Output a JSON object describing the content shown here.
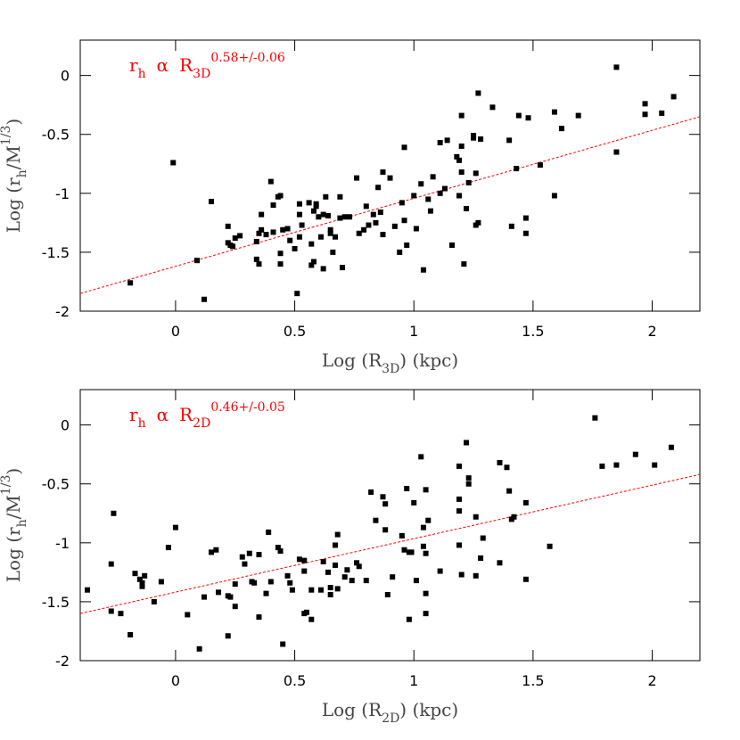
{
  "chart_data": [
    {
      "type": "scatter",
      "annotation": [
        {
          "text": "r"
        },
        {
          "text": "h",
          "role": "sub"
        },
        {
          "text": "α",
          "role": "gap"
        },
        {
          "text": "R",
          "role": "gap"
        },
        {
          "text": "3D",
          "role": "sub"
        },
        {
          "text": "0.58+/-0.06",
          "role": "sup"
        }
      ],
      "annotation_color": "#ff0000",
      "xlabel": [
        {
          "text": "Log (R"
        },
        {
          "text": "3D",
          "role": "sub"
        },
        {
          "text": ") (kpc)"
        }
      ],
      "ylabel": [
        {
          "text": "Log (r"
        },
        {
          "text": "h",
          "role": "sub"
        },
        {
          "text": "/M"
        },
        {
          "text": "1/3",
          "role": "sup"
        },
        {
          "text": ")"
        }
      ],
      "xlim": [
        -0.4,
        2.2
      ],
      "ylim": [
        -2,
        0.3
      ],
      "xticks": [
        0,
        0.5,
        1,
        1.5,
        2
      ],
      "yticks": [
        -2,
        -1.5,
        -1,
        -0.5,
        0
      ],
      "color": "#000000",
      "x": [
        -0.19,
        -0.01,
        0.09,
        0.12,
        0.15,
        0.22,
        0.23,
        0.24,
        0.25,
        0.22,
        0.27,
        0.34,
        0.34,
        0.35,
        0.35,
        0.36,
        0.36,
        0.38,
        0.4,
        0.41,
        0.41,
        0.43,
        0.44,
        0.44,
        0.45,
        0.44,
        0.47,
        0.48,
        0.5,
        0.51,
        0.52,
        0.52,
        0.52,
        0.53,
        0.56,
        0.57,
        0.57,
        0.58,
        0.58,
        0.59,
        0.59,
        0.6,
        0.61,
        0.62,
        0.62,
        0.64,
        0.63,
        0.65,
        0.65,
        0.66,
        0.67,
        0.69,
        0.69,
        0.7,
        0.71,
        0.73,
        0.76,
        0.77,
        0.79,
        0.8,
        0.81,
        0.83,
        0.84,
        0.85,
        0.86,
        0.87,
        0.87,
        0.9,
        0.92,
        0.94,
        0.95,
        0.96,
        0.96,
        0.97,
        1.0,
        1.01,
        1.03,
        1.04,
        1.06,
        1.07,
        1.08,
        1.11,
        1.11,
        1.13,
        1.14,
        1.16,
        1.19,
        1.2,
        1.2,
        1.18,
        1.19,
        1.2,
        1.21,
        1.22,
        1.23,
        1.25,
        1.25,
        1.26,
        1.26,
        1.27,
        1.27,
        1.28,
        1.33,
        1.4,
        1.41,
        1.43,
        1.44,
        1.47,
        1.47,
        1.48,
        1.53,
        1.59,
        1.59,
        1.62,
        1.69,
        1.85,
        1.85,
        1.97,
        1.97,
        2.04,
        2.09
      ],
      "y": [
        -1.76,
        -0.74,
        -1.57,
        -1.9,
        -1.07,
        -1.42,
        -1.44,
        -1.45,
        -1.38,
        -1.28,
        -1.36,
        -1.41,
        -1.56,
        -1.6,
        -1.34,
        -1.31,
        -1.18,
        -1.35,
        -0.9,
        -1.33,
        -1.1,
        -1.03,
        -1.51,
        -1.6,
        -1.31,
        -1.02,
        -1.3,
        -1.4,
        -1.47,
        -1.85,
        -1.37,
        -1.09,
        -1.18,
        -1.27,
        -1.08,
        -1.61,
        -1.43,
        -1.15,
        -1.58,
        -1.09,
        -1.11,
        -1.2,
        -1.37,
        -1.18,
        -1.64,
        -1.19,
        -1.03,
        -1.31,
        -1.34,
        -1.5,
        -1.37,
        -1.03,
        -1.21,
        -1.63,
        -1.2,
        -1.2,
        -0.87,
        -1.34,
        -1.31,
        -1.11,
        -1.27,
        -1.18,
        -1.25,
        -0.95,
        -1.16,
        -0.82,
        -1.35,
        -0.87,
        -1.28,
        -1.5,
        -1.08,
        -0.61,
        -1.23,
        -1.44,
        -1.02,
        -1.3,
        -0.92,
        -1.65,
        -1.05,
        -1.15,
        -0.86,
        -0.57,
        -1.0,
        -0.96,
        -0.55,
        -1.44,
        -1.02,
        -0.34,
        -0.6,
        -0.69,
        -0.72,
        -0.82,
        -1.6,
        -1.13,
        -0.91,
        -0.51,
        -0.53,
        -0.83,
        -1.27,
        -1.25,
        -0.15,
        -0.54,
        -0.27,
        -0.55,
        -1.28,
        -0.79,
        -0.34,
        -1.34,
        -1.21,
        -0.36,
        -0.76,
        -1.02,
        -0.31,
        -0.45,
        -0.34,
        0.07,
        -0.65,
        -0.24,
        -0.33,
        -0.32,
        -0.18
      ],
      "fit": {
        "x": [
          -0.4,
          2.2
        ],
        "y": [
          -1.85,
          -0.35
        ],
        "color": "#ff0000",
        "dashed": true
      }
    },
    {
      "type": "scatter",
      "annotation": [
        {
          "text": "r"
        },
        {
          "text": "h",
          "role": "sub"
        },
        {
          "text": "α",
          "role": "gap"
        },
        {
          "text": "R",
          "role": "gap"
        },
        {
          "text": "2D",
          "role": "sub"
        },
        {
          "text": "0.46+/-0.05",
          "role": "sup"
        }
      ],
      "annotation_color": "#ff0000",
      "xlabel": [
        {
          "text": "Log (R"
        },
        {
          "text": "2D",
          "role": "sub"
        },
        {
          "text": ") (kpc)"
        }
      ],
      "ylabel": [
        {
          "text": "Log (r"
        },
        {
          "text": "h",
          "role": "sub"
        },
        {
          "text": "/M"
        },
        {
          "text": "1/3",
          "role": "sup"
        },
        {
          "text": ")"
        }
      ],
      "xlim": [
        -0.4,
        2.2
      ],
      "ylim": [
        -2,
        0.3
      ],
      "xticks": [
        0,
        0.5,
        1,
        1.5,
        2
      ],
      "yticks": [
        -2,
        -1.5,
        -1,
        -0.5,
        0
      ],
      "color": "#000000",
      "x": [
        -0.37,
        -0.26,
        -0.27,
        -0.27,
        -0.23,
        -0.19,
        -0.17,
        -0.15,
        -0.14,
        -0.14,
        -0.13,
        -0.09,
        -0.06,
        -0.03,
        0.0,
        0.05,
        0.1,
        0.12,
        0.15,
        0.17,
        0.18,
        0.22,
        0.23,
        0.22,
        0.25,
        0.25,
        0.28,
        0.29,
        0.31,
        0.32,
        0.33,
        0.35,
        0.35,
        0.38,
        0.39,
        0.4,
        0.43,
        0.44,
        0.45,
        0.47,
        0.48,
        0.49,
        0.52,
        0.54,
        0.54,
        0.54,
        0.55,
        0.57,
        0.57,
        0.61,
        0.62,
        0.64,
        0.65,
        0.65,
        0.67,
        0.67,
        0.68,
        0.68,
        0.71,
        0.72,
        0.74,
        0.76,
        0.77,
        0.8,
        0.82,
        0.84,
        0.87,
        0.88,
        0.88,
        0.89,
        0.91,
        0.95,
        0.96,
        0.97,
        0.98,
        0.98,
        0.99,
        1.0,
        1.01,
        1.03,
        1.04,
        1.04,
        1.05,
        1.05,
        1.05,
        1.05,
        1.06,
        1.11,
        1.19,
        1.19,
        1.19,
        1.19,
        1.2,
        1.22,
        1.23,
        1.23,
        1.26,
        1.26,
        1.28,
        1.29,
        1.36,
        1.36,
        1.39,
        1.4,
        1.41,
        1.42,
        1.47,
        1.47,
        1.57,
        1.79,
        1.76,
        1.85,
        1.93,
        2.01,
        2.08
      ],
      "y": [
        -1.4,
        -0.75,
        -1.18,
        -1.58,
        -1.6,
        -1.78,
        -1.26,
        -1.31,
        -1.34,
        -1.37,
        -1.28,
        -1.5,
        -1.33,
        -1.04,
        -0.87,
        -1.61,
        -1.9,
        -1.46,
        -1.08,
        -1.06,
        -1.42,
        -1.45,
        -1.46,
        -1.79,
        -1.35,
        -1.54,
        -1.12,
        -1.18,
        -1.09,
        -1.33,
        -1.34,
        -1.63,
        -1.1,
        -1.43,
        -0.91,
        -1.33,
        -1.04,
        -1.07,
        -1.86,
        -1.28,
        -1.34,
        -1.4,
        -1.14,
        -1.24,
        -1.15,
        -1.6,
        -1.59,
        -1.65,
        -1.4,
        -1.4,
        -1.16,
        -1.25,
        -1.38,
        -1.44,
        -1.02,
        -1.19,
        -0.93,
        -1.39,
        -1.29,
        -1.23,
        -1.32,
        -1.17,
        -1.2,
        -1.32,
        -0.57,
        -0.81,
        -0.61,
        -0.89,
        -0.67,
        -1.44,
        -1.29,
        -0.94,
        -1.06,
        -0.54,
        -1.65,
        -1.08,
        -1.08,
        -0.66,
        -1.32,
        -0.27,
        -0.87,
        -1.03,
        -1.09,
        -0.55,
        -1.43,
        -1.6,
        -0.81,
        -1.24,
        -1.02,
        -0.63,
        -0.73,
        -0.35,
        -1.27,
        -0.15,
        -0.45,
        -0.5,
        -0.78,
        -1.28,
        -1.13,
        -0.96,
        -1.17,
        -0.32,
        -0.36,
        -0.56,
        -0.8,
        -0.78,
        -0.66,
        -1.31,
        -1.03,
        -0.35,
        0.06,
        -0.34,
        -0.25,
        -0.34,
        -0.19
      ],
      "fit": {
        "x": [
          -0.4,
          2.2
        ],
        "y": [
          -1.6,
          -0.42
        ],
        "color": "#ff0000",
        "dashed": true
      }
    }
  ]
}
